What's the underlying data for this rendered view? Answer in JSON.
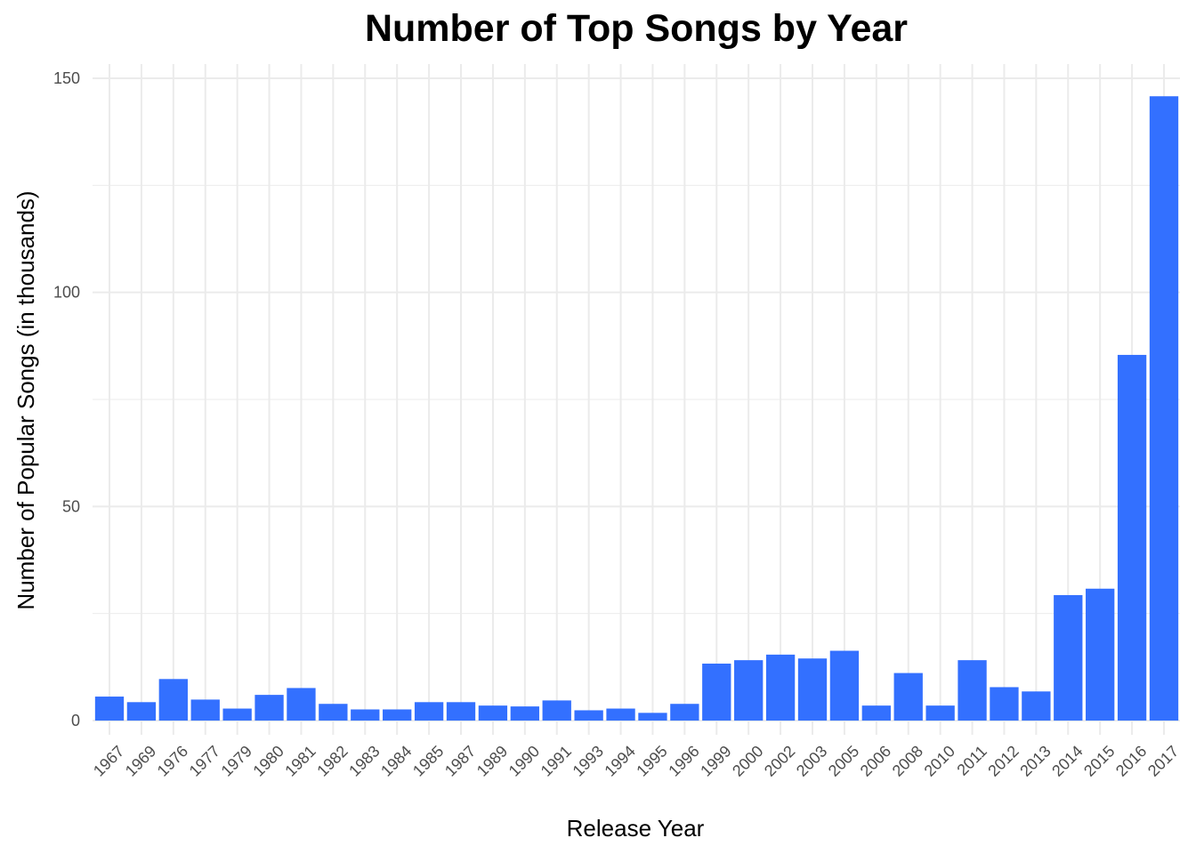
{
  "chart_data": {
    "type": "bar",
    "title": "Number of Top Songs by Year",
    "xlabel": "Release Year",
    "ylabel": "Number of Popular Songs (in thousands)",
    "ylim": [
      0,
      150
    ],
    "yticks": [
      "0",
      "50",
      "100",
      "150"
    ],
    "grid": true,
    "legend": "none",
    "bar_color": "#3370ff",
    "grid_color": "#ebebeb",
    "categories": [
      "1967",
      "1969",
      "1976",
      "1977",
      "1979",
      "1980",
      "1981",
      "1982",
      "1983",
      "1984",
      "1985",
      "1987",
      "1989",
      "1990",
      "1991",
      "1993",
      "1994",
      "1995",
      "1996",
      "1999",
      "2000",
      "2002",
      "2003",
      "2005",
      "2006",
      "2008",
      "2010",
      "2011",
      "2012",
      "2013",
      "2014",
      "2015",
      "2016",
      "2017"
    ],
    "values": [
      5.6,
      4.3,
      9.7,
      4.9,
      2.8,
      6.0,
      7.6,
      3.9,
      2.6,
      2.6,
      4.3,
      4.3,
      3.5,
      3.3,
      4.7,
      2.4,
      2.8,
      1.8,
      3.9,
      13.3,
      14.1,
      15.4,
      14.5,
      16.3,
      3.5,
      11.1,
      3.5,
      14.1,
      7.8,
      6.8,
      29.3,
      30.8,
      85.4,
      145.8
    ]
  }
}
